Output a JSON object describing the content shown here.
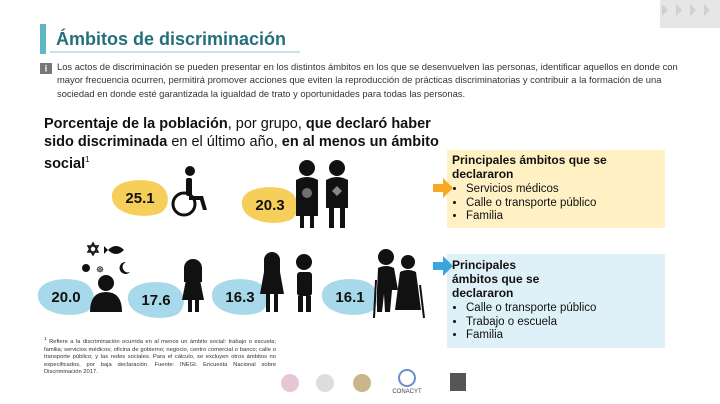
{
  "header": {
    "title": "Ámbitos de discriminación",
    "info_icon": "i",
    "intro": "Los actos de discriminación se pueden presentar en los distintos ámbitos en los que se desenvuelven las personas, identificar aquellos en donde con mayor frecuencia ocurren, permitirá promover acciones que eviten la reproducción de prácticas discriminatorias y contribuir a la formación de una sociedad en donde esté garantizada la igualdad de trato y oportunidades para todas las personas."
  },
  "heading": {
    "parts": [
      "Porcentaje de la población",
      ", por grupo, ",
      "que declaró haber sido discriminada",
      " en el último año, ",
      "en al menos un ámbito social"
    ],
    "note_marker": "1"
  },
  "groups": {
    "values": [
      25.1,
      20.3,
      20.0,
      17.6,
      16.3,
      16.1
    ],
    "value_labels": [
      "25.1",
      "20.3",
      "20.0",
      "17.6",
      "16.3",
      "16.1"
    ]
  },
  "panels": [
    {
      "title": "Principales ámbitos que se declararon",
      "items": [
        "Servicios médicos",
        "Calle o transporte público",
        "Familia"
      ]
    },
    {
      "title": "Principales ámbitos que se declararon",
      "items": [
        "Calle o transporte público",
        "Trabajo o escuela",
        "Familia"
      ]
    }
  ],
  "footnote": {
    "marker": "1",
    "text": "Refiere a la discriminación ocurrida en al menos un ámbito social: trabajo o escuela; familia; servicios médicos; oficina de gobierno; negocio, centro comercial o banco; calle o transporte público; y las redes sociales. Para el cálculo, se excluyen otros ámbitos no especificados, por baja declaración. Fuente: INEGI. Encuesta Nacional sobre Discriminación 2017."
  },
  "logos": {
    "conacyt": "CONACYT"
  }
}
